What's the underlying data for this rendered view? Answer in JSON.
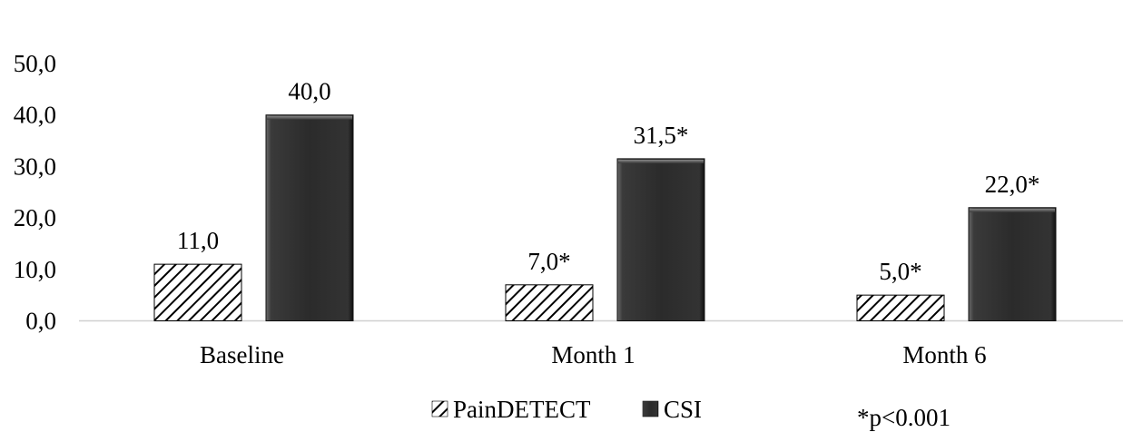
{
  "chart_data": {
    "type": "bar",
    "categories": [
      "Baseline",
      "Month 1",
      "Month 6"
    ],
    "series": [
      {
        "name": "PainDETECT",
        "values": [
          11.0,
          7.0,
          5.0
        ],
        "labels": [
          "11,0",
          "7,0*",
          "5,0*"
        ],
        "pattern": "diagonal-hatch",
        "color": "#000000"
      },
      {
        "name": "CSI",
        "values": [
          40.0,
          31.5,
          22.0
        ],
        "labels": [
          "40,0",
          "31,5*",
          "22,0*"
        ],
        "pattern": "solid-bevel",
        "color": "#2e2e2e"
      }
    ],
    "yticks": [
      "0,0",
      "10,0",
      "20,0",
      "30,0",
      "40,0",
      "50,0"
    ],
    "ylim": [
      0,
      50
    ],
    "grid": false,
    "legend_position": "bottom",
    "note": "*p<0.001",
    "title": "",
    "xlabel": "",
    "ylabel": ""
  }
}
